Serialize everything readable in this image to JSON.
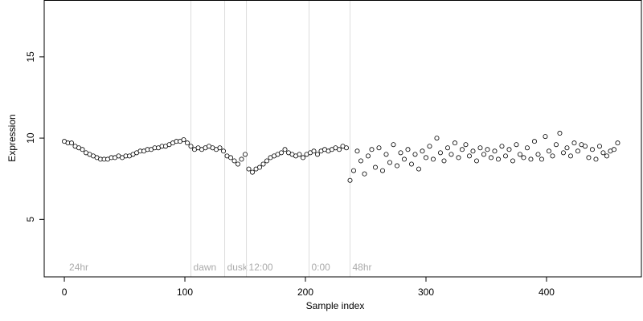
{
  "chart_data": {
    "type": "scatter",
    "x_label": "Sample index",
    "y_label": "Expression",
    "xlim": [
      -16.7,
      478.7
    ],
    "ylim": [
      1.46,
      18.5
    ],
    "xticks": [
      0,
      100,
      200,
      300,
      400
    ],
    "yticks": [
      5,
      10,
      15
    ],
    "markers": [
      {
        "x": 2,
        "label": "24hr",
        "line": false
      },
      {
        "x": 105,
        "label": "dawn",
        "line": true
      },
      {
        "x": 133,
        "label": "dusk",
        "line": true
      },
      {
        "x": 151,
        "label": "12:00",
        "line": true
      },
      {
        "x": 203,
        "label": "0:00",
        "line": true
      },
      {
        "x": 237,
        "label": "48hr",
        "line": true
      }
    ],
    "series": [
      {
        "color": "#ffffff",
        "edgecolor": "#000000",
        "x": [
          0,
          3,
          6,
          9,
          12,
          15,
          18,
          21,
          24,
          27,
          30,
          33,
          36,
          39,
          42,
          45,
          48,
          51,
          54,
          57,
          60,
          63,
          66,
          69,
          72,
          75,
          78,
          81,
          84,
          87,
          90,
          93,
          96,
          99,
          102,
          105,
          108,
          111,
          114,
          117,
          120,
          123,
          126,
          129,
          132,
          135,
          138,
          141,
          144,
          147,
          150,
          153,
          156,
          159,
          162,
          165,
          168,
          171,
          174,
          177,
          180,
          183,
          186,
          189,
          192,
          195,
          198,
          201,
          204,
          207,
          210,
          213,
          216,
          219,
          222,
          225,
          228,
          231,
          234,
          237,
          240,
          243,
          246,
          249,
          252,
          255,
          258,
          261,
          264,
          267,
          270,
          273,
          276,
          279,
          282,
          285,
          288,
          291,
          294,
          297,
          300,
          303,
          306,
          309,
          312,
          315,
          318,
          321,
          324,
          327,
          330,
          333,
          336,
          339,
          342,
          345,
          348,
          351,
          354,
          357,
          360,
          363,
          366,
          369,
          372,
          375,
          378,
          381,
          384,
          387,
          390,
          393,
          396,
          399,
          402,
          405,
          408,
          411,
          414,
          417,
          420,
          423,
          426,
          429,
          432,
          435,
          438,
          441,
          444,
          447,
          450,
          453,
          456,
          459
        ],
        "values": [
          9.8,
          9.7,
          9.7,
          9.5,
          9.4,
          9.3,
          9.1,
          9.0,
          8.9,
          8.8,
          8.7,
          8.7,
          8.7,
          8.8,
          8.8,
          8.9,
          8.8,
          8.9,
          8.9,
          9.0,
          9.1,
          9.2,
          9.2,
          9.3,
          9.3,
          9.4,
          9.4,
          9.5,
          9.5,
          9.6,
          9.7,
          9.8,
          9.8,
          9.9,
          9.7,
          9.5,
          9.3,
          9.4,
          9.3,
          9.4,
          9.5,
          9.4,
          9.3,
          9.4,
          9.2,
          8.9,
          8.8,
          8.6,
          8.4,
          8.7,
          9.0,
          8.1,
          7.9,
          8.1,
          8.2,
          8.4,
          8.6,
          8.8,
          8.9,
          9.0,
          9.1,
          9.3,
          9.1,
          9.0,
          8.9,
          9.0,
          8.8,
          9.0,
          9.1,
          9.2,
          9.0,
          9.2,
          9.3,
          9.2,
          9.3,
          9.4,
          9.3,
          9.5,
          9.4,
          7.4,
          8.0,
          9.2,
          8.6,
          7.8,
          8.9,
          9.3,
          8.2,
          9.4,
          8.0,
          9.0,
          8.5,
          9.6,
          8.3,
          9.1,
          8.7,
          9.3,
          8.4,
          9.0,
          8.1,
          9.2,
          8.8,
          9.5,
          8.7,
          10.0,
          9.1,
          8.6,
          9.4,
          9.0,
          9.7,
          8.8,
          9.3,
          9.6,
          8.9,
          9.2,
          8.6,
          9.4,
          9.0,
          9.3,
          8.8,
          9.2,
          8.7,
          9.5,
          8.9,
          9.3,
          8.6,
          9.6,
          9.0,
          8.8,
          9.4,
          8.7,
          9.8,
          9.0,
          8.7,
          10.1,
          9.2,
          8.9,
          9.6,
          10.3,
          9.1,
          9.4,
          8.9,
          9.7,
          9.2,
          9.6,
          9.5,
          8.8,
          9.3,
          8.7,
          9.5,
          9.1,
          8.9,
          9.2,
          9.3,
          9.7
        ]
      }
    ]
  }
}
